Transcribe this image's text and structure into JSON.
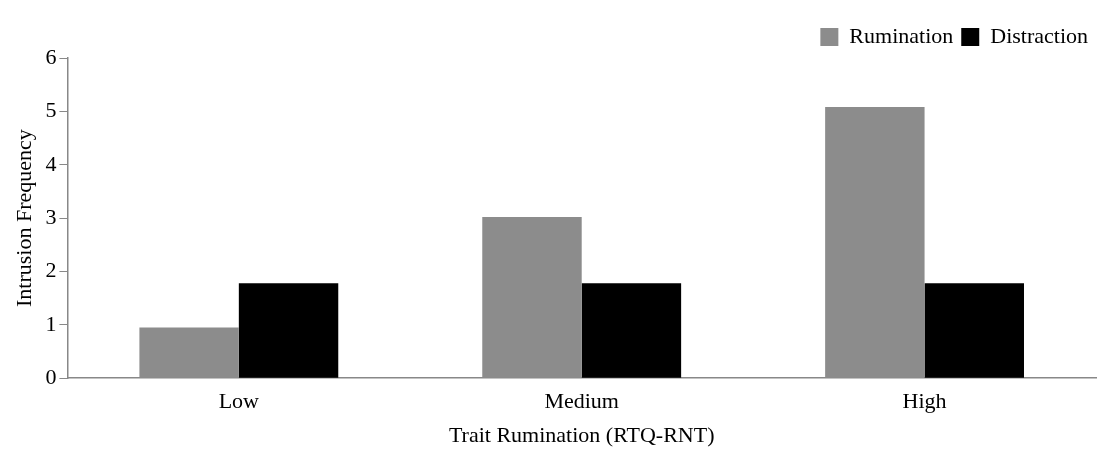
{
  "chart_data": {
    "type": "bar",
    "xlabel": "Trait Rumination (RTQ-RNT)",
    "ylabel": "Intrusion Frequency",
    "categories": [
      "Low",
      "Medium",
      "High"
    ],
    "series": [
      {
        "name": "Rumination",
        "color": "#8c8c8c",
        "values": [
          0.95,
          3.02,
          5.08
        ]
      },
      {
        "name": "Distraction",
        "color": "#000000",
        "values": [
          1.78,
          1.78,
          1.78
        ]
      }
    ],
    "ylim": [
      0,
      6
    ],
    "yticks": [
      0,
      1,
      2,
      3,
      4,
      5,
      6
    ],
    "grid": false,
    "legend": "top right"
  }
}
